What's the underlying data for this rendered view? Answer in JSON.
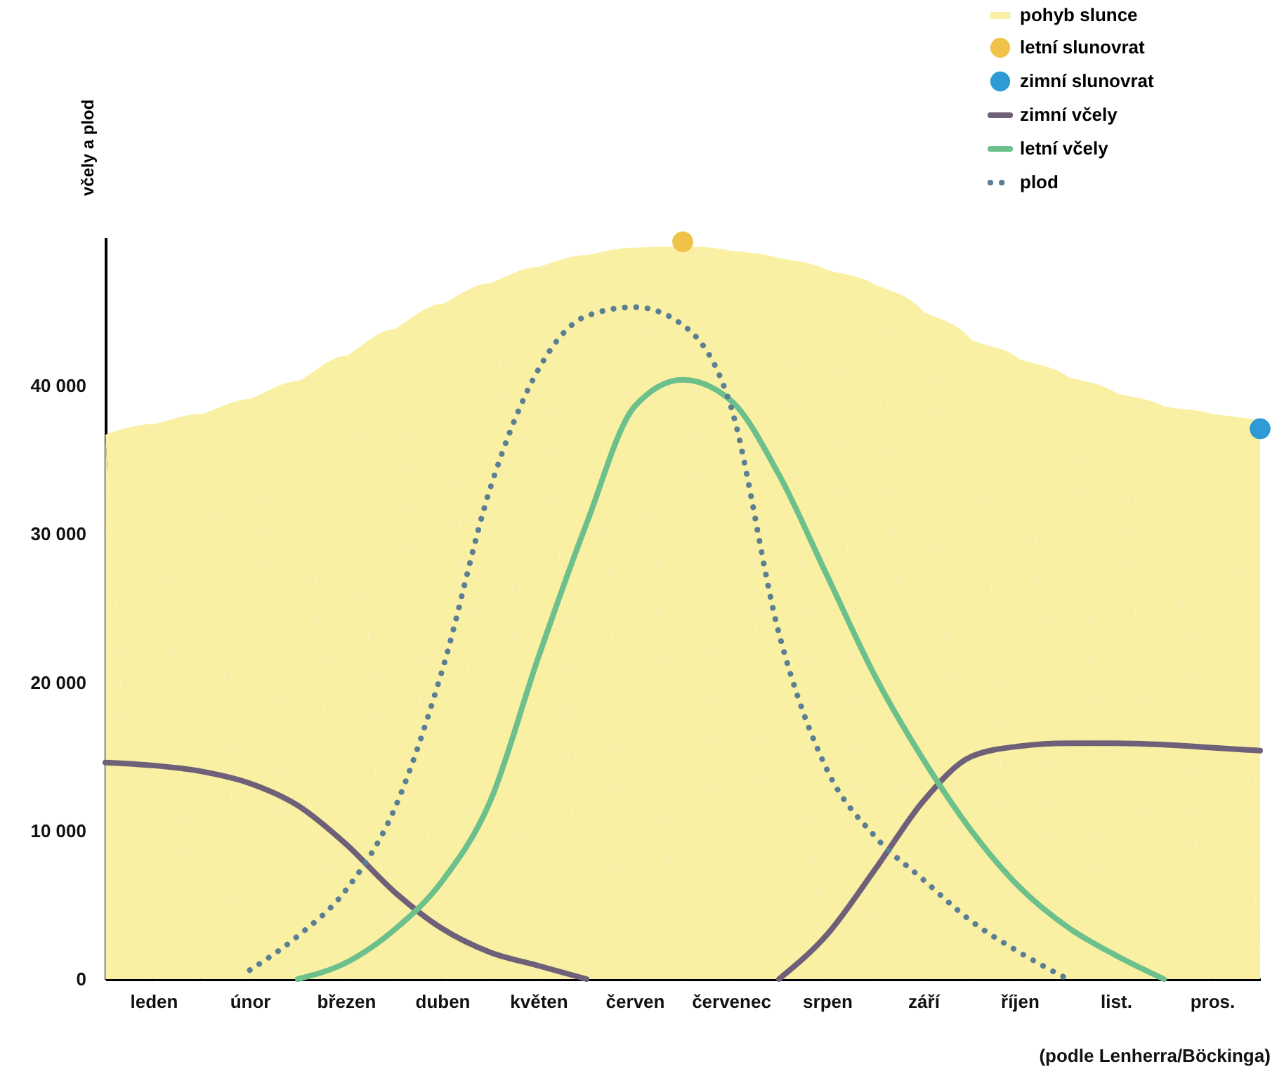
{
  "chart_data": {
    "type": "line",
    "ylabel": "včely a plod",
    "annotations": [
      "(podle Lenherra/Böckinga)"
    ],
    "categories": [
      null,
      "leden",
      null,
      "únor",
      null,
      "březen",
      null,
      "duben",
      null,
      "květen",
      null,
      "červen",
      null,
      "červenec",
      null,
      "srpen",
      null,
      "září",
      null,
      "říjen",
      null,
      "list.",
      null,
      "pros.",
      null
    ],
    "ylim": [
      0,
      50000
    ],
    "yticks": [
      {
        "value": 0,
        "label": "0"
      },
      {
        "value": 10000,
        "label": "10 000"
      },
      {
        "value": 20000,
        "label": "20 000"
      },
      {
        "value": 30000,
        "label": "30 000"
      },
      {
        "value": 40000,
        "label": "40 000"
      }
    ],
    "legend": "top right",
    "series": [
      {
        "name": "pohyb slunce",
        "type": "area",
        "color": "#f9f0a3",
        "values": [
          36700,
          37400,
          38100,
          39100,
          40300,
          42000,
          43800,
          45500,
          46900,
          48000,
          48800,
          49300,
          49400,
          49100,
          48600,
          47800,
          46800,
          45000,
          43100,
          41800,
          40600,
          39500,
          38600,
          38100,
          37700
        ]
      },
      {
        "name": "letní slunovrat",
        "type": "scatter",
        "marker": "circle",
        "color": "#f0c24a",
        "values": [
          null,
          null,
          null,
          null,
          null,
          null,
          null,
          null,
          null,
          null,
          null,
          null,
          49700,
          null,
          null,
          null,
          null,
          null,
          null,
          null,
          null,
          null,
          null,
          null,
          null
        ]
      },
      {
        "name": "zimní slunovrat",
        "type": "scatter",
        "marker": "circle",
        "color": "#2e9bd6",
        "values": [
          null,
          null,
          null,
          null,
          null,
          null,
          null,
          null,
          null,
          null,
          null,
          null,
          null,
          null,
          null,
          null,
          null,
          null,
          null,
          null,
          null,
          null,
          null,
          null,
          37100
        ]
      },
      {
        "name": "zimní včely",
        "color": "#6e6078",
        "line_style": "solid",
        "values": [
          14600,
          14400,
          14000,
          13200,
          11700,
          9100,
          5900,
          3400,
          1800,
          900,
          0,
          null,
          null,
          null,
          0,
          3000,
          7400,
          12000,
          15000,
          15700,
          15900,
          15900,
          15800,
          15600,
          15400
        ]
      },
      {
        "name": "letní včely",
        "color": "#6cc08b",
        "line_style": "solid",
        "values": [
          null,
          null,
          null,
          null,
          0,
          1100,
          3300,
          6600,
          12000,
          21700,
          30700,
          38600,
          40400,
          39000,
          34000,
          27200,
          20400,
          14800,
          10000,
          6200,
          3500,
          1600,
          0,
          null,
          null
        ]
      },
      {
        "name": "plod",
        "color": "#5a7f94",
        "line_style": "dotted",
        "values": [
          null,
          null,
          null,
          600,
          2900,
          6000,
          11400,
          20800,
          33100,
          41100,
          44700,
          45300,
          44100,
          38600,
          23300,
          14100,
          9600,
          6700,
          3900,
          1800,
          0,
          null,
          null,
          null,
          null
        ]
      }
    ]
  }
}
